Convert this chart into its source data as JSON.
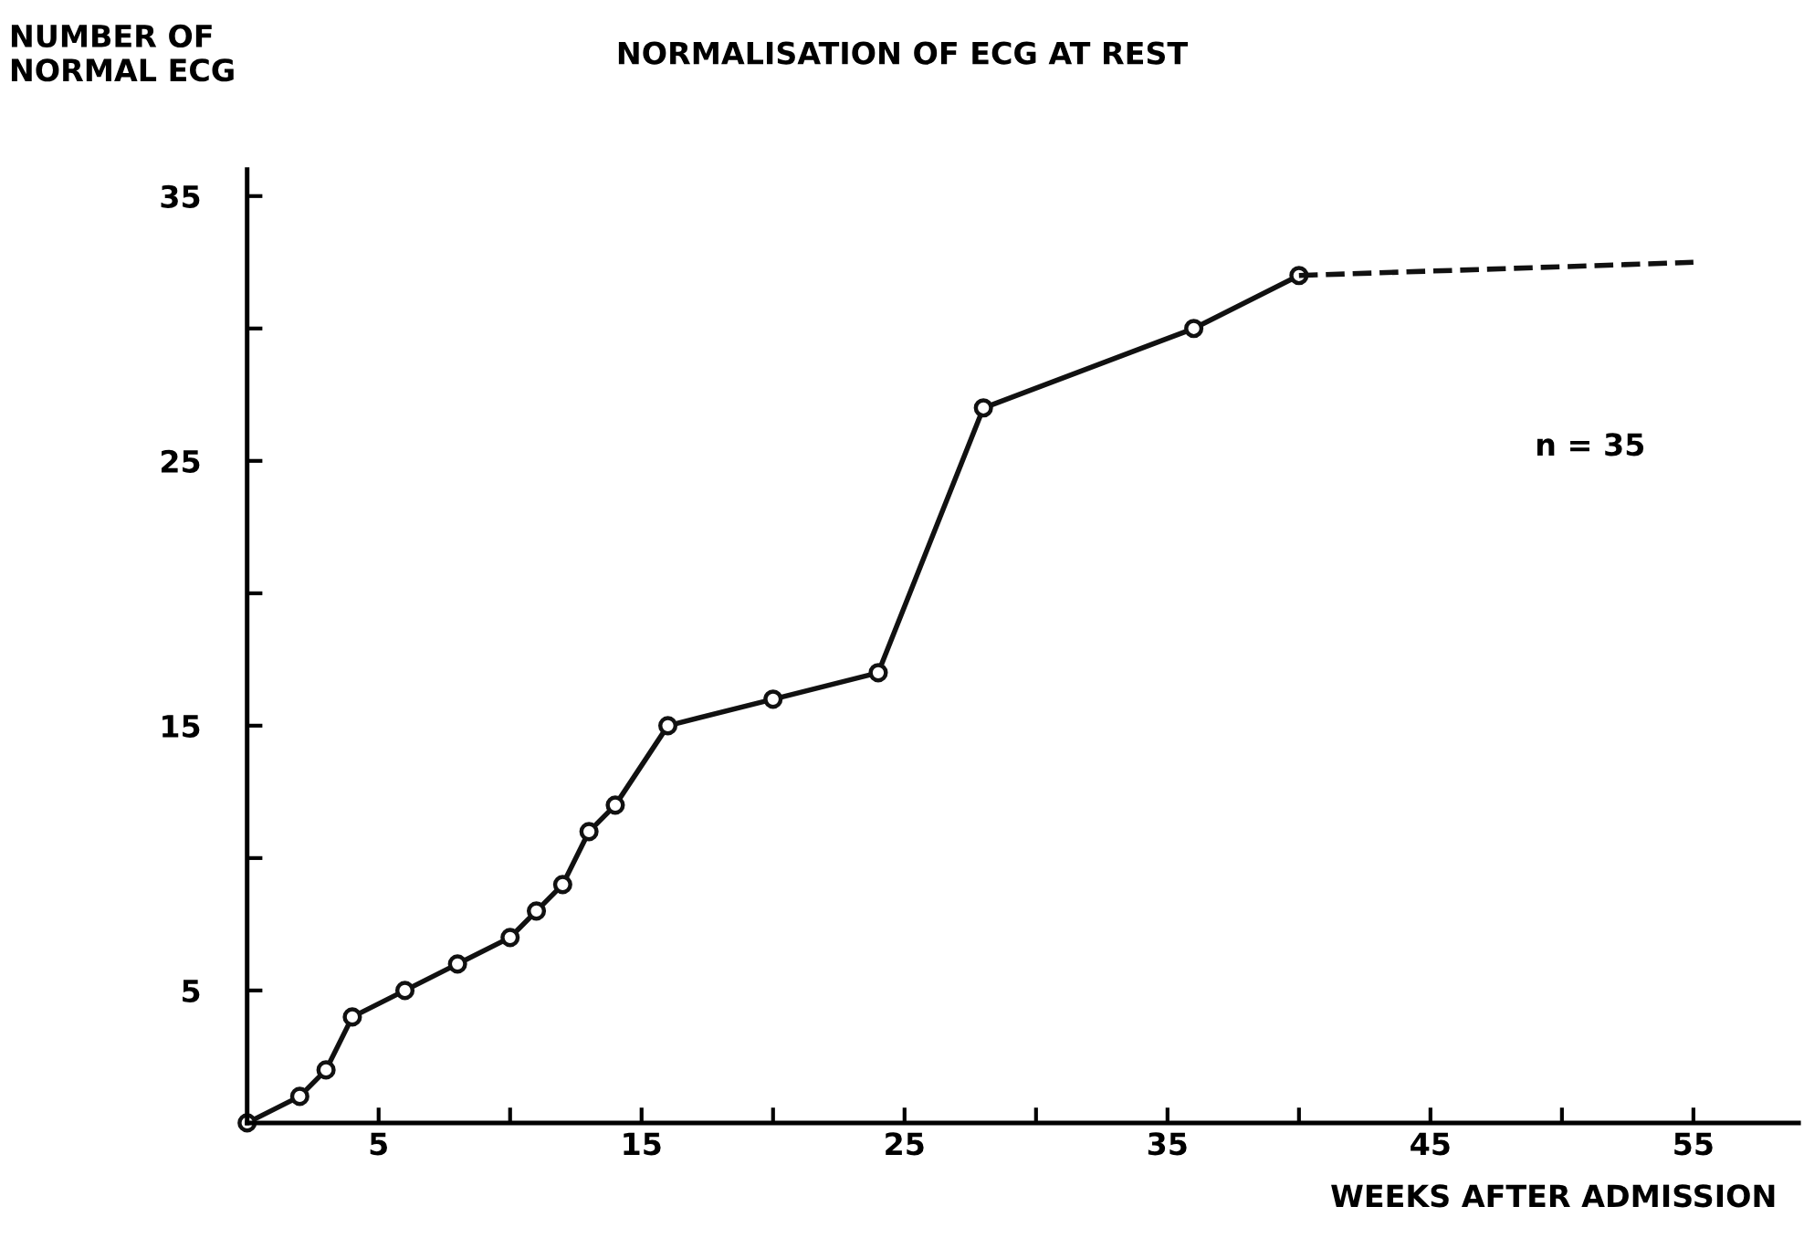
{
  "chart_data": {
    "type": "line",
    "title": "NORMALISATION OF ECG AT REST",
    "ylabel": "NUMBER OF\nNORMAL ECG",
    "xlabel": "WEEKS AFTER ADMISSION",
    "series": [
      {
        "color": "#111111",
        "marker": "circle",
        "line_style": "solid",
        "x": [
          0,
          2,
          3,
          4,
          6,
          8,
          10,
          11,
          12,
          13,
          14,
          16,
          20,
          24,
          28,
          36,
          40
        ],
        "values": [
          0,
          1,
          2,
          4,
          5,
          6,
          7,
          8,
          9,
          11,
          12,
          15,
          16,
          17,
          27,
          30,
          32
        ]
      },
      {
        "color": "#111111",
        "marker": "none",
        "line_style": "dashed",
        "x": [
          40,
          55
        ],
        "values": [
          32,
          32.5
        ]
      }
    ],
    "xlim": [
      0,
      59
    ],
    "ylim": [
      0,
      36
    ],
    "xticks": [
      5,
      {
        "value": 10,
        "label": null
      },
      15,
      {
        "value": 20,
        "label": null
      },
      25,
      {
        "value": 30,
        "label": null
      },
      35,
      {
        "value": 40,
        "label": null
      },
      45,
      {
        "value": 50,
        "label": null
      },
      55
    ],
    "yticks": [
      5,
      {
        "value": 10,
        "label": null
      },
      15,
      {
        "value": 20,
        "label": null
      },
      25,
      {
        "value": 30,
        "label": null
      },
      35
    ],
    "annotations": [
      "n = 35"
    ],
    "grid": false,
    "legend": false
  }
}
